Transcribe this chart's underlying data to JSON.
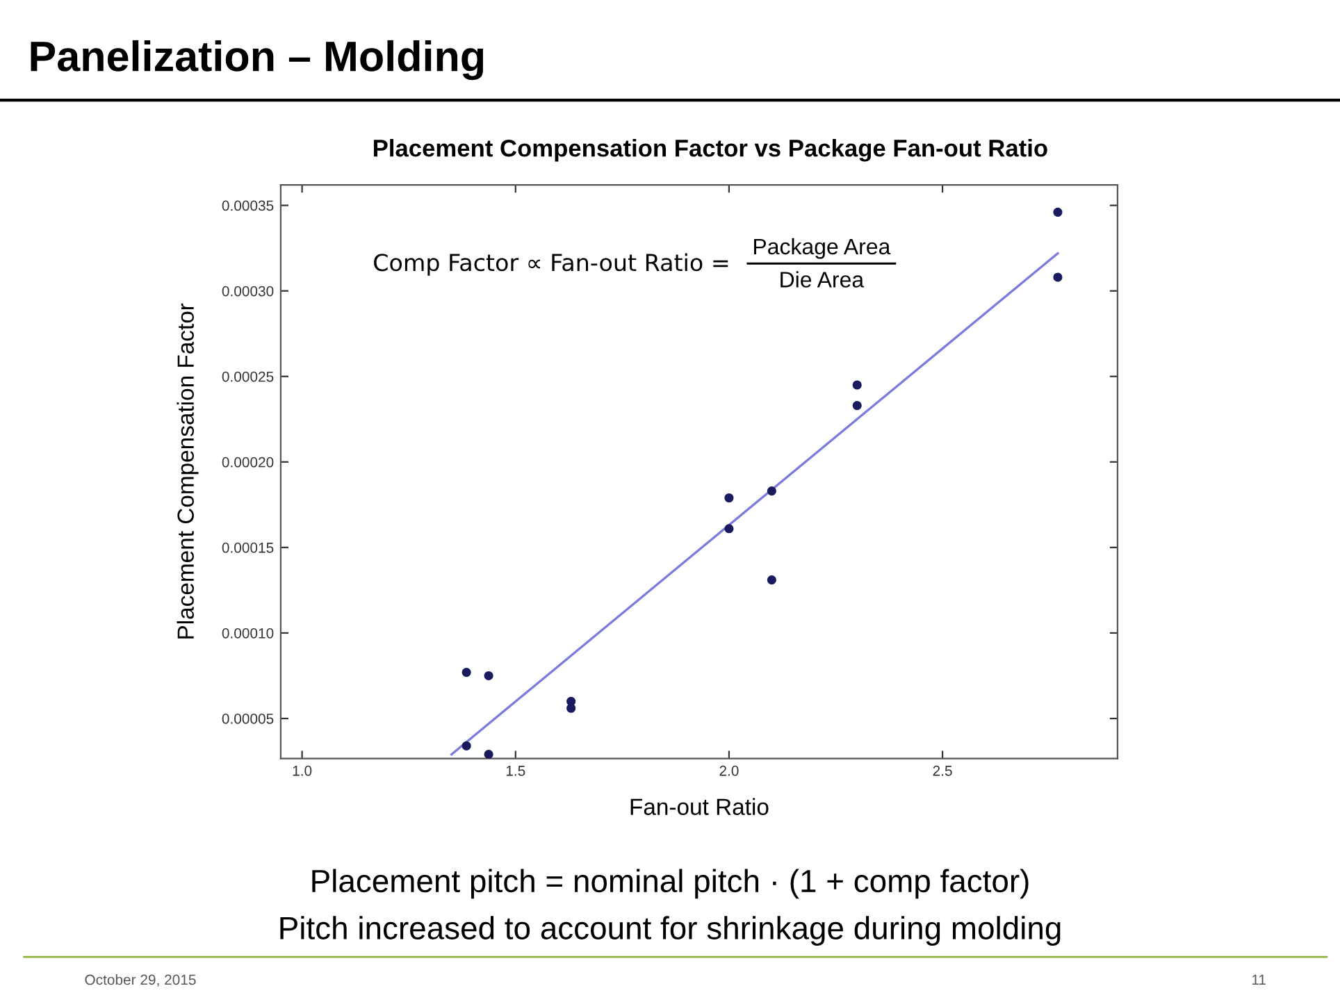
{
  "chart_data": {
    "type": "scatter",
    "title": "Panelization – Molding",
    "subtitle": "Placement Compensation Factor vs Package Fan-out Ratio",
    "xlabel": "Fan-out Ratio",
    "ylabel": "Placement Compensation Factor",
    "series": [
      {
        "color": "#1a1a5e",
        "marker": "circle",
        "x": [
          1.385,
          1.437,
          1.385,
          1.437,
          1.63,
          1.63,
          2.0,
          2.0,
          2.1,
          2.1,
          2.3,
          2.3,
          2.77,
          2.77
        ],
        "values": [
          7.7e-05,
          7.5e-05,
          3.4e-05,
          2.9e-05,
          6e-05,
          5.6e-05,
          0.000179,
          0.000161,
          0.000183,
          0.000131,
          0.000245,
          0.000233,
          0.000346,
          0.000308
        ]
      },
      {
        "type": "line",
        "color": "#7b7bdc",
        "x": [
          1.35,
          2.77
        ],
        "values": [
          2.9e-05,
          0.000322
        ]
      }
    ],
    "xlim": [
      0.95,
      2.91
    ],
    "ylim": [
      2.66e-05,
      0.000362
    ],
    "xticks": [
      {
        "value": 1.0,
        "label": "1.0"
      },
      {
        "value": 1.5,
        "label": "1.5"
      },
      {
        "value": 2.0,
        "label": "2.0"
      },
      {
        "value": 2.5,
        "label": "2.5"
      }
    ],
    "yticks": [
      {
        "value": 5e-05,
        "label": "0.00005"
      },
      {
        "value": 0.0001,
        "label": "0.00010"
      },
      {
        "value": 0.00015,
        "label": "0.00015"
      },
      {
        "value": 0.0002,
        "label": "0.00020"
      },
      {
        "value": 0.00025,
        "label": "0.00025"
      },
      {
        "value": 0.0003,
        "label": "0.00030"
      },
      {
        "value": 0.00035,
        "label": "0.00035"
      }
    ],
    "grid": false,
    "line_style": "solid",
    "annotations": [
      "Comp Factor ∝ Fan-out Ratio =",
      "Package Area",
      "Die Area",
      "Placement pitch = nominal pitch · (1 + comp factor)",
      "Pitch increased to account for shrinkage during molding",
      "October 29, 2015",
      "11"
    ]
  }
}
